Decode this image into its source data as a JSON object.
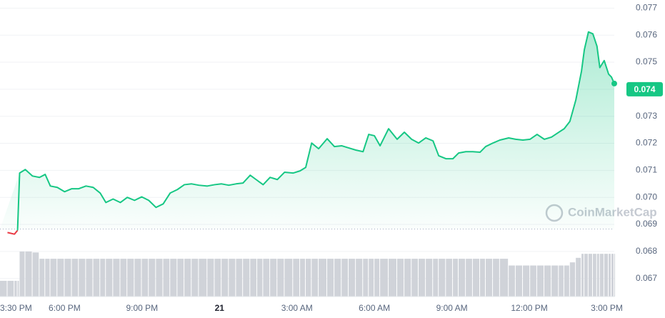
{
  "chart_data": {
    "type": "line",
    "watermark": "CoinMarketCap",
    "x": [
      15.5,
      15.79,
      16.06,
      16.18,
      16.26,
      16.48,
      16.76,
      17.03,
      17.25,
      17.45,
      17.72,
      18,
      18.28,
      18.55,
      18.83,
      19.11,
      19.38,
      19.6,
      19.88,
      20.16,
      20.43,
      20.71,
      20.99,
      21.26,
      21.54,
      21.82,
      22.09,
      22.37,
      22.64,
      22.92,
      23.2,
      23.53,
      23.81,
      24.08,
      24.36,
      24.64,
      24.91,
      25.19,
      25.46,
      25.69,
      25.96,
      26.24,
      26.52,
      26.85,
      27.12,
      27.34,
      27.57,
      27.84,
      28.17,
      28.45,
      28.73,
      29,
      29.28,
      29.56,
      29.78,
      30,
      30.22,
      30.55,
      30.88,
      31.16,
      31.44,
      31.71,
      31.99,
      32.27,
      32.49,
      32.77,
      33.04,
      33.26,
      33.54,
      33.81,
      34.09,
      34.31,
      34.59,
      34.86,
      35.2,
      35.47,
      35.75,
      36.03,
      36.3,
      36.58,
      36.86,
      37.14,
      37.35,
      37.57,
      37.8,
      38.02,
      38.13,
      38.29,
      38.46,
      38.62,
      38.73,
      38.9,
      39.07,
      39.18,
      39.29
    ],
    "series": [
      {
        "color": "#16c784",
        "down_color": "#ea3943",
        "values": [
          0.06883,
          0.0687,
          0.06864,
          0.06878,
          0.0709,
          0.07103,
          0.07079,
          0.07074,
          0.07085,
          0.07042,
          0.07037,
          0.07021,
          0.07032,
          0.07032,
          0.07042,
          0.07037,
          0.07016,
          0.06981,
          0.06994,
          0.06981,
          0.07,
          0.06989,
          0.07002,
          0.06989,
          0.06963,
          0.06976,
          0.07016,
          0.07029,
          0.07047,
          0.0705,
          0.07045,
          0.07042,
          0.07047,
          0.0705,
          0.07045,
          0.0705,
          0.07053,
          0.07082,
          0.07063,
          0.07047,
          0.07074,
          0.07066,
          0.07093,
          0.0709,
          0.07098,
          0.07111,
          0.07201,
          0.0718,
          0.07217,
          0.07188,
          0.07191,
          0.07183,
          0.07175,
          0.07169,
          0.07233,
          0.07228,
          0.07191,
          0.07254,
          0.07215,
          0.07241,
          0.07215,
          0.07201,
          0.0722,
          0.07209,
          0.07154,
          0.07143,
          0.07143,
          0.07164,
          0.07169,
          0.07169,
          0.07167,
          0.07188,
          0.07201,
          0.07212,
          0.0722,
          0.07215,
          0.07212,
          0.07215,
          0.07233,
          0.07215,
          0.07223,
          0.07241,
          0.07254,
          0.07281,
          0.0736,
          0.07467,
          0.07546,
          0.07612,
          0.07605,
          0.07559,
          0.0748,
          0.07506,
          0.07456,
          0.07445,
          0.07421
        ]
      }
    ],
    "baseline": 0.06883,
    "current_price": 0.074,
    "volume": {
      "color": "#d0d3d9",
      "values": [
        35,
        35,
        35,
        35,
        100,
        100,
        98,
        84,
        84,
        84,
        84,
        84,
        84,
        84,
        84,
        84,
        84,
        84,
        84,
        84,
        84,
        84,
        84,
        84,
        84,
        84,
        84,
        84,
        84,
        84,
        84,
        84,
        84,
        84,
        84,
        84,
        84,
        84,
        84,
        84,
        84,
        84,
        84,
        84,
        84,
        84,
        84,
        84,
        84,
        84,
        84,
        84,
        84,
        84,
        84,
        84,
        84,
        84,
        84,
        84,
        84,
        84,
        84,
        84,
        84,
        84,
        84,
        84,
        84,
        84,
        84,
        84,
        84,
        84,
        69,
        69,
        69,
        69,
        69,
        69,
        69,
        69,
        69,
        76,
        86,
        95,
        95,
        95,
        95,
        95,
        95,
        95,
        95,
        95,
        95
      ]
    },
    "xlim": [
      15.5,
      39.29
    ],
    "xticks": [
      {
        "value": 15.5,
        "label": "3:30 PM"
      },
      {
        "value": 18,
        "label": "6:00 PM"
      },
      {
        "value": 21,
        "label": "9:00 PM"
      },
      {
        "value": 24,
        "label": "21"
      },
      {
        "value": 27,
        "label": "3:00 AM"
      },
      {
        "value": 30,
        "label": "6:00 AM"
      },
      {
        "value": 33,
        "label": "9:00 AM"
      },
      {
        "value": 36,
        "label": "12:00 PM"
      },
      {
        "value": 39,
        "label": "3:00 PM"
      }
    ],
    "ylim": [
      0.0662,
      0.0773
    ],
    "yticks": [
      0.067,
      0.068,
      0.069,
      {
        "value": 0.07,
        "label": "0.070"
      },
      0.071,
      0.072,
      0.073,
      0.074,
      0.075,
      0.076,
      0.077
    ],
    "grid": true
  }
}
